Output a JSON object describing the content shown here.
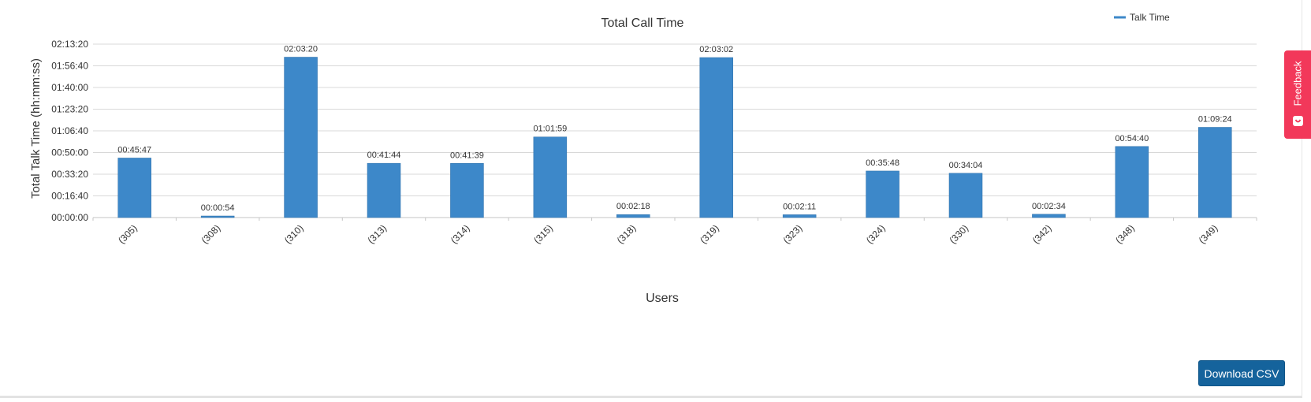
{
  "chart_data": {
    "type": "bar",
    "title": "Total Call Time",
    "xlabel": "Users",
    "ylabel": "Total Talk Time (hh:mm:ss)",
    "ylim": [
      0,
      8000
    ],
    "y_ticks": [
      "00:00:00",
      "00:16:40",
      "00:33:20",
      "00:50:00",
      "01:06:40",
      "01:23:20",
      "01:40:00",
      "01:56:40",
      "02:13:20"
    ],
    "grid": true,
    "legend_position": "top-right",
    "categories": [
      "(305)",
      "(308)",
      "(310)",
      "(313)",
      "(314)",
      "(315)",
      "(318)",
      "(319)",
      "(323)",
      "(324)",
      "(330)",
      "(342)",
      "(348)",
      "(349)"
    ],
    "series": [
      {
        "name": "Talk Time",
        "color": "#3d88c9",
        "values": [
          2747,
          54,
          7400,
          2504,
          2499,
          3719,
          138,
          7382,
          131,
          2148,
          2044,
          154,
          3280,
          4164
        ],
        "labels": [
          "00:45:47",
          "00:00:54",
          "02:03:20",
          "00:41:44",
          "00:41:39",
          "01:01:59",
          "00:02:18",
          "02:03:02",
          "00:02:11",
          "00:35:48",
          "00:34:04",
          "00:02:34",
          "00:54:40",
          "01:09:24"
        ]
      }
    ]
  },
  "ui": {
    "feedback_label": "Feedback",
    "download_label": "Download CSV"
  }
}
